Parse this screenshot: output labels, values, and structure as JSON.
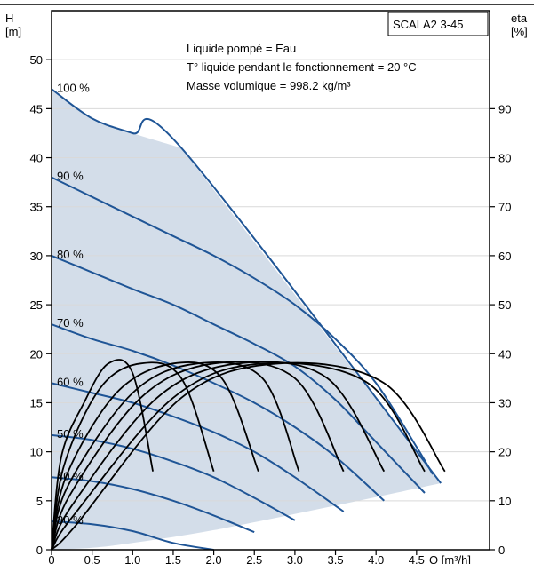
{
  "chart_data": {
    "type": "line",
    "box_label": "SCALA2 3-45",
    "annotations": [
      "Liquide pompé = Eau",
      "T° liquide pendant le fonctionnement = 20 °C",
      "Masse volumique = 998.2 kg/m³"
    ],
    "y_left": {
      "label_top": "H",
      "label_unit": "[m]",
      "range": [
        0,
        55
      ],
      "ticks": [
        "0",
        "5",
        "10",
        "15",
        "20",
        "25",
        "30",
        "35",
        "40",
        "45",
        "50"
      ]
    },
    "y_right": {
      "label_top": "eta",
      "label_unit": "[%]",
      "range": [
        0,
        110
      ],
      "ticks": [
        "0",
        "10",
        "20",
        "30",
        "40",
        "50",
        "60",
        "70",
        "80",
        "90"
      ]
    },
    "x": {
      "label": "Q [m³/h]",
      "range": [
        0,
        5.4
      ],
      "ticks": [
        "0",
        "0.5",
        "1.0",
        "1.5",
        "2.0",
        "2.5",
        "3.0",
        "3.5",
        "4.0",
        "4.5"
      ]
    },
    "grid": "horizontal",
    "colors": {
      "head": "#1f5596",
      "eff": "#000000",
      "area": "#d3dde9",
      "grid": "#d9d9d9"
    },
    "operating_area": {
      "top": [
        [
          0,
          47
        ],
        [
          0.5,
          44
        ],
        [
          1,
          42.5
        ],
        [
          1.6,
          41
        ]
      ],
      "right": [
        [
          1.6,
          41
        ],
        [
          4.8,
          6.8
        ]
      ],
      "bottom": [
        [
          4.8,
          6.8
        ],
        [
          3.5,
          4.5
        ],
        [
          2,
          2
        ],
        [
          1,
          0.7
        ],
        [
          0.5,
          0.2
        ],
        [
          0,
          0
        ]
      ]
    },
    "head_curves": [
      {
        "label": "100 %",
        "points": [
          [
            0,
            47
          ],
          [
            0.5,
            44
          ],
          [
            1,
            42.5
          ],
          [
            1.6,
            41
          ],
          [
            4.8,
            6.8
          ]
        ]
      },
      {
        "label": "90 %",
        "points": [
          [
            0,
            38
          ],
          [
            0.5,
            36
          ],
          [
            1,
            34
          ],
          [
            1.5,
            32
          ],
          [
            2,
            30
          ],
          [
            2.5,
            27.7
          ],
          [
            3,
            25
          ],
          [
            3.5,
            21.5
          ],
          [
            4,
            17
          ],
          [
            4.5,
            10.5
          ],
          [
            4.7,
            7.7
          ]
        ]
      },
      {
        "label": "80 %",
        "points": [
          [
            0,
            30
          ],
          [
            0.5,
            28.3
          ],
          [
            1,
            26.6
          ],
          [
            1.5,
            25
          ],
          [
            2,
            23
          ],
          [
            2.5,
            21
          ],
          [
            3,
            18.7
          ],
          [
            3.5,
            15.3
          ],
          [
            4,
            11
          ],
          [
            4.6,
            5.8
          ]
        ]
      },
      {
        "label": "70 %",
        "points": [
          [
            0,
            23
          ],
          [
            0.5,
            21.5
          ],
          [
            1,
            20.3
          ],
          [
            1.5,
            18.8
          ],
          [
            2,
            17
          ],
          [
            2.5,
            15
          ],
          [
            3,
            12.5
          ],
          [
            3.5,
            9.5
          ],
          [
            4.1,
            5
          ]
        ]
      },
      {
        "label": "60 %",
        "points": [
          [
            0,
            17
          ],
          [
            0.5,
            16
          ],
          [
            1,
            15
          ],
          [
            1.5,
            13.6
          ],
          [
            2,
            12
          ],
          [
            2.5,
            10
          ],
          [
            3,
            7.4
          ],
          [
            3.6,
            3.9
          ]
        ]
      },
      {
        "label": "50 %",
        "points": [
          [
            0,
            11.7
          ],
          [
            0.5,
            11.2
          ],
          [
            1,
            10.3
          ],
          [
            1.5,
            9
          ],
          [
            2,
            7.4
          ],
          [
            2.5,
            5.3
          ],
          [
            3,
            3
          ]
        ]
      },
      {
        "label": "40 %",
        "points": [
          [
            0,
            7.4
          ],
          [
            0.5,
            7
          ],
          [
            1,
            6.2
          ],
          [
            1.5,
            5
          ],
          [
            2,
            3.5
          ],
          [
            2.5,
            1.8
          ]
        ]
      },
      {
        "label": "30 %",
        "points": [
          [
            0,
            2.9
          ],
          [
            0.5,
            2.6
          ],
          [
            1,
            1.9
          ],
          [
            1.5,
            0.7
          ],
          [
            2,
            0
          ]
        ]
      }
    ],
    "efficiency_curves": [
      {
        "points": [
          [
            0.12,
            19
          ],
          [
            0.4,
            30
          ],
          [
            0.7,
            38
          ],
          [
            1.0,
            36
          ],
          [
            1.25,
            16
          ]
        ]
      },
      {
        "points": [
          [
            0.15,
            17
          ],
          [
            0.6,
            33
          ],
          [
            1.1,
            38
          ],
          [
            1.6,
            35
          ],
          [
            2.0,
            16
          ]
        ]
      },
      {
        "points": [
          [
            0.18,
            15
          ],
          [
            0.8,
            32
          ],
          [
            1.5,
            38
          ],
          [
            2.1,
            35
          ],
          [
            2.55,
            16
          ]
        ]
      },
      {
        "points": [
          [
            0.2,
            13
          ],
          [
            1.0,
            32
          ],
          [
            1.8,
            38
          ],
          [
            2.6,
            35
          ],
          [
            3.05,
            16
          ]
        ]
      },
      {
        "points": [
          [
            0.22,
            11
          ],
          [
            1.1,
            31
          ],
          [
            2.0,
            38
          ],
          [
            3.0,
            35
          ],
          [
            3.6,
            16
          ]
        ]
      },
      {
        "points": [
          [
            0.25,
            9
          ],
          [
            1.3,
            31
          ],
          [
            2.3,
            38
          ],
          [
            3.4,
            35
          ],
          [
            4.1,
            16
          ]
        ]
      },
      {
        "points": [
          [
            0.27,
            7
          ],
          [
            1.5,
            31
          ],
          [
            2.6,
            38
          ],
          [
            3.9,
            34
          ],
          [
            4.6,
            16
          ]
        ]
      },
      {
        "points": [
          [
            0.3,
            5
          ],
          [
            1.6,
            31
          ],
          [
            2.8,
            38
          ],
          [
            4.1,
            34
          ],
          [
            4.85,
            16
          ]
        ]
      }
    ]
  }
}
